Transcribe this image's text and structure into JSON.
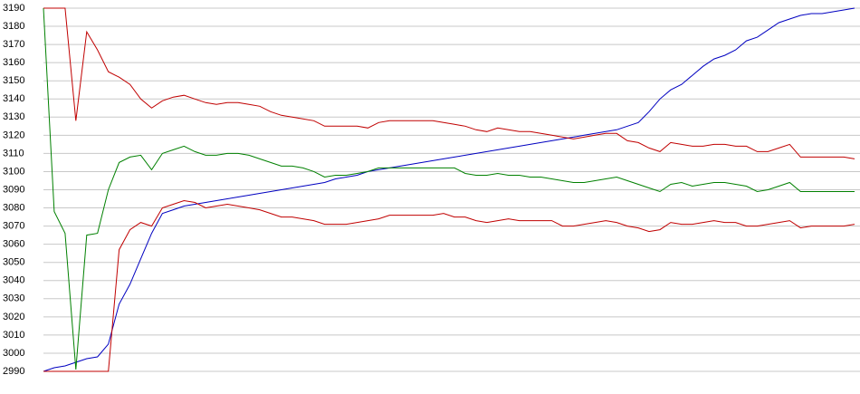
{
  "chart_data": {
    "type": "line",
    "categories": [
      null,
      null,
      null,
      null,
      null,
      null,
      null,
      null,
      null,
      null,
      null,
      null,
      null,
      null,
      null,
      null,
      null,
      null,
      null,
      null,
      null,
      null,
      null,
      null,
      null,
      null,
      null,
      null,
      null,
      null,
      null,
      null,
      null,
      null,
      null,
      null,
      null,
      null,
      null,
      null,
      null,
      null,
      null,
      null,
      null,
      null,
      null,
      null,
      null,
      null,
      null,
      null,
      null,
      null,
      null,
      null,
      null,
      null,
      null,
      null,
      null,
      null,
      null,
      null,
      null,
      null,
      null,
      null,
      null,
      null,
      null,
      null,
      null,
      null,
      null,
      null
    ],
    "series": [
      {
        "color": "#0000c0",
        "values": [
          2990,
          2992,
          2993,
          2995,
          2997,
          2998,
          3005,
          3027,
          3038,
          3052,
          3066,
          3077,
          3079,
          3081,
          3082,
          3083,
          3084,
          3085,
          3086,
          3087,
          3088,
          3089,
          3090,
          3091,
          3092,
          3093,
          3094,
          3096,
          3097,
          3098,
          3100,
          3101,
          3102,
          3103,
          3104,
          3105,
          3106,
          3107,
          3108,
          3109,
          3110,
          3111,
          3112,
          3113,
          3114,
          3115,
          3116,
          3117,
          3118,
          3119,
          3120,
          3121,
          3122,
          3123,
          3125,
          3127,
          3133,
          3140,
          3145,
          3148,
          3153,
          3158,
          3162,
          3164,
          3167,
          3172,
          3174,
          3178,
          3182,
          3184,
          3186,
          3187,
          3187,
          3188,
          3189,
          3190
        ]
      },
      {
        "color": "#008000",
        "values": [
          3190,
          3078,
          3066,
          2991,
          3065,
          3066,
          3090,
          3105,
          3108,
          3109,
          3101,
          3110,
          3112,
          3114,
          3111,
          3109,
          3109,
          3110,
          3110,
          3109,
          3107,
          3105,
          3103,
          3103,
          3102,
          3100,
          3097,
          3098,
          3098,
          3099,
          3100,
          3102,
          3102,
          3102,
          3102,
          3102,
          3102,
          3102,
          3102,
          3099,
          3098,
          3098,
          3099,
          3098,
          3098,
          3097,
          3097,
          3096,
          3095,
          3094,
          3094,
          3095,
          3096,
          3097,
          3095,
          3093,
          3091,
          3089,
          3093,
          3094,
          3092,
          3093,
          3094,
          3094,
          3093,
          3092,
          3089,
          3090,
          3092,
          3094,
          3089,
          3089,
          3089,
          3089,
          3089,
          3089
        ]
      },
      {
        "color": "#c00000",
        "values": [
          3190,
          3190,
          3190,
          3128,
          3177,
          3167,
          3155,
          3152,
          3148,
          3140,
          3135,
          3139,
          3141,
          3142,
          3140,
          3138,
          3137,
          3138,
          3138,
          3137,
          3136,
          3133,
          3131,
          3130,
          3129,
          3128,
          3125,
          3125,
          3125,
          3125,
          3124,
          3127,
          3128,
          3128,
          3128,
          3128,
          3128,
          3127,
          3126,
          3125,
          3123,
          3122,
          3124,
          3123,
          3122,
          3122,
          3121,
          3120,
          3119,
          3118,
          3119,
          3120,
          3121,
          3121,
          3117,
          3116,
          3113,
          3111,
          3116,
          3115,
          3114,
          3114,
          3115,
          3115,
          3114,
          3114,
          3111,
          3111,
          3113,
          3115,
          3108,
          3108,
          3108,
          3108,
          3108,
          3107
        ]
      },
      {
        "color": "#c00000",
        "values": [
          2990,
          2990,
          2990,
          2990,
          2990,
          2990,
          2990,
          3057,
          3068,
          3072,
          3070,
          3080,
          3082,
          3084,
          3083,
          3080,
          3081,
          3082,
          3081,
          3080,
          3079,
          3077,
          3075,
          3075,
          3074,
          3073,
          3071,
          3071,
          3071,
          3072,
          3073,
          3074,
          3076,
          3076,
          3076,
          3076,
          3076,
          3077,
          3075,
          3075,
          3073,
          3072,
          3073,
          3074,
          3073,
          3073,
          3073,
          3073,
          3070,
          3070,
          3071,
          3072,
          3073,
          3072,
          3070,
          3069,
          3067,
          3068,
          3072,
          3071,
          3071,
          3072,
          3073,
          3072,
          3072,
          3070,
          3070,
          3071,
          3072,
          3073,
          3069,
          3070,
          3070,
          3070,
          3070,
          3071
        ]
      }
    ],
    "ylim": [
      2990,
      3190
    ],
    "yticks": [
      2990,
      3000,
      3010,
      3020,
      3030,
      3040,
      3050,
      3060,
      3070,
      3080,
      3090,
      3100,
      3110,
      3120,
      3130,
      3140,
      3150,
      3160,
      3170,
      3180,
      3190
    ],
    "grid": true
  }
}
